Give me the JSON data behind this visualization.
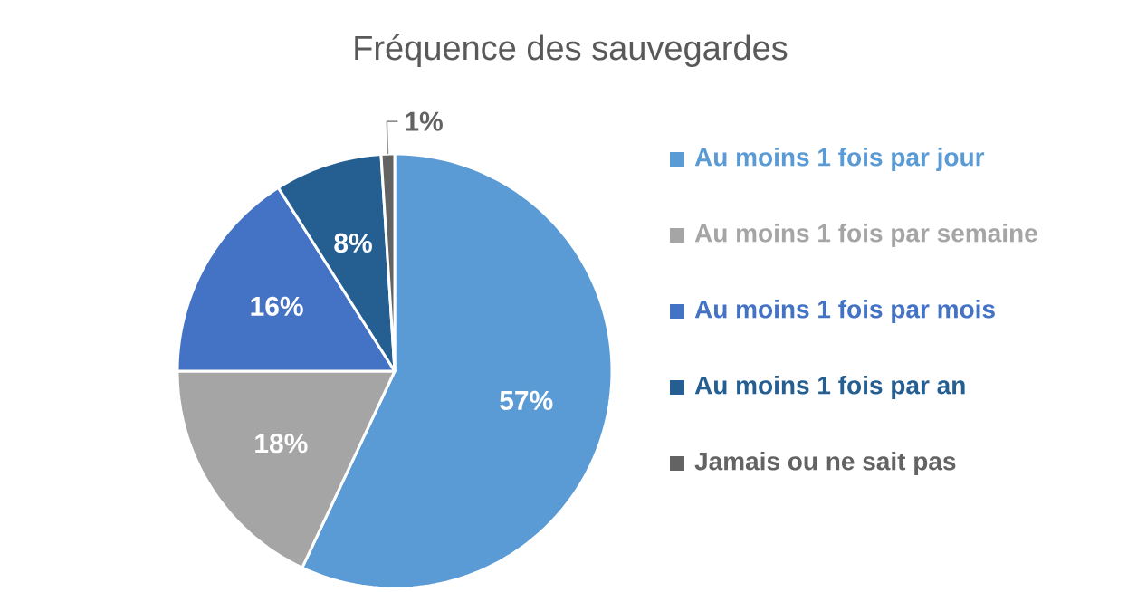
{
  "chart_data": {
    "type": "pie",
    "title": "Fréquence des sauvegardes",
    "categories": [
      "Au moins 1 fois par jour",
      "Au moins 1 fois par semaine",
      "Au moins 1 fois par mois",
      "Au moins 1 fois par an",
      "Jamais ou ne sait pas"
    ],
    "values": [
      57,
      18,
      16,
      8,
      1
    ],
    "value_labels": [
      "57%",
      "18%",
      "16%",
      "8%",
      "1%"
    ],
    "colors": [
      "#5b9bd5",
      "#a5a5a5",
      "#4472c4",
      "#255e91",
      "#636363"
    ],
    "legend": "right"
  }
}
